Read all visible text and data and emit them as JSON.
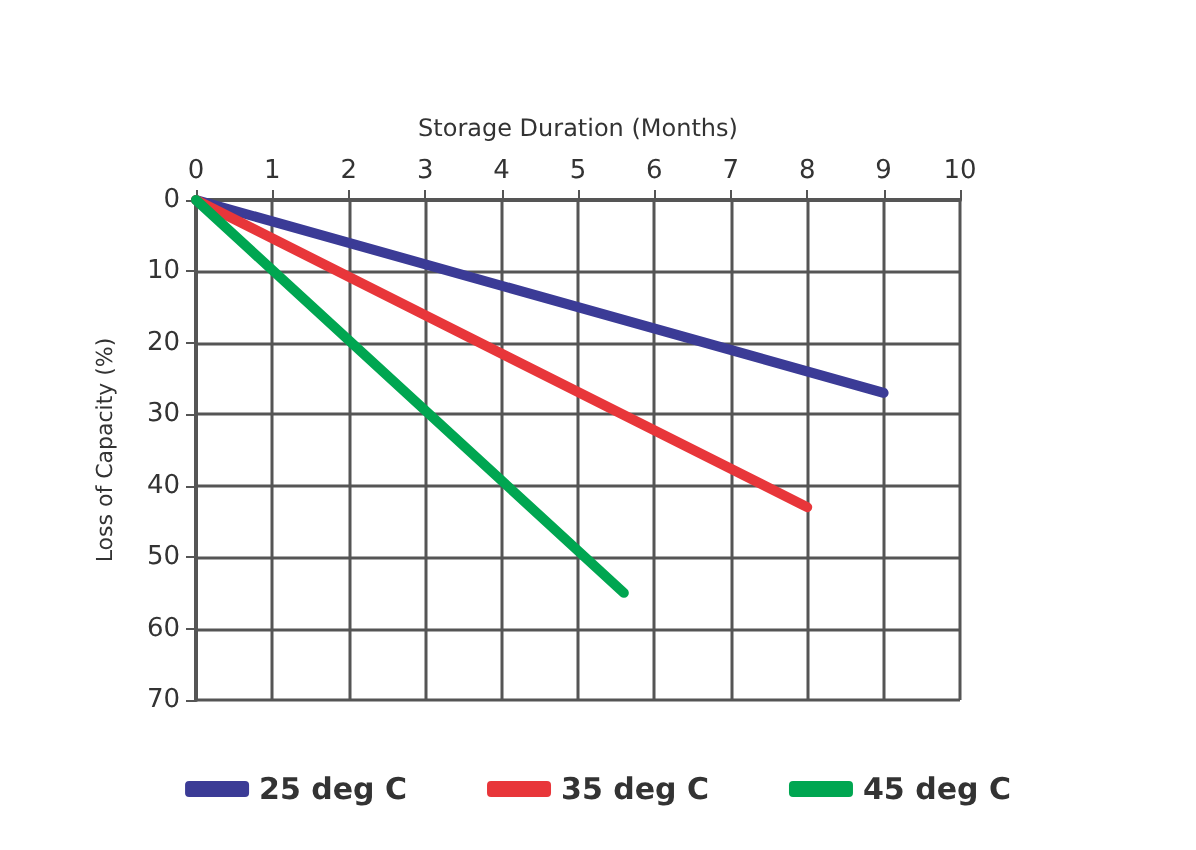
{
  "chart_data": {
    "type": "line",
    "xlabel": "Storage Duration (Months)",
    "ylabel": "Loss of Capacity (%)",
    "series": [
      {
        "name": "25 deg C",
        "color": "#3b3b96",
        "x": [
          0,
          9
        ],
        "values": [
          0,
          27
        ]
      },
      {
        "name": "35 deg C",
        "color": "#e8363a",
        "x": [
          0,
          8
        ],
        "values": [
          0,
          43
        ]
      },
      {
        "name": "45 deg C",
        "color": "#00a651",
        "x": [
          0,
          5.6
        ],
        "values": [
          0,
          55
        ]
      }
    ],
    "xlim": [
      0,
      10
    ],
    "xticks": [
      0,
      1,
      2,
      3,
      4,
      5,
      6,
      7,
      8,
      9,
      10
    ],
    "ylim": [
      70,
      0
    ],
    "yticks": [
      0,
      10,
      20,
      30,
      40,
      50,
      60,
      70
    ],
    "grid": true,
    "legend": "bottom",
    "marker": "none",
    "line_style": "solid"
  }
}
